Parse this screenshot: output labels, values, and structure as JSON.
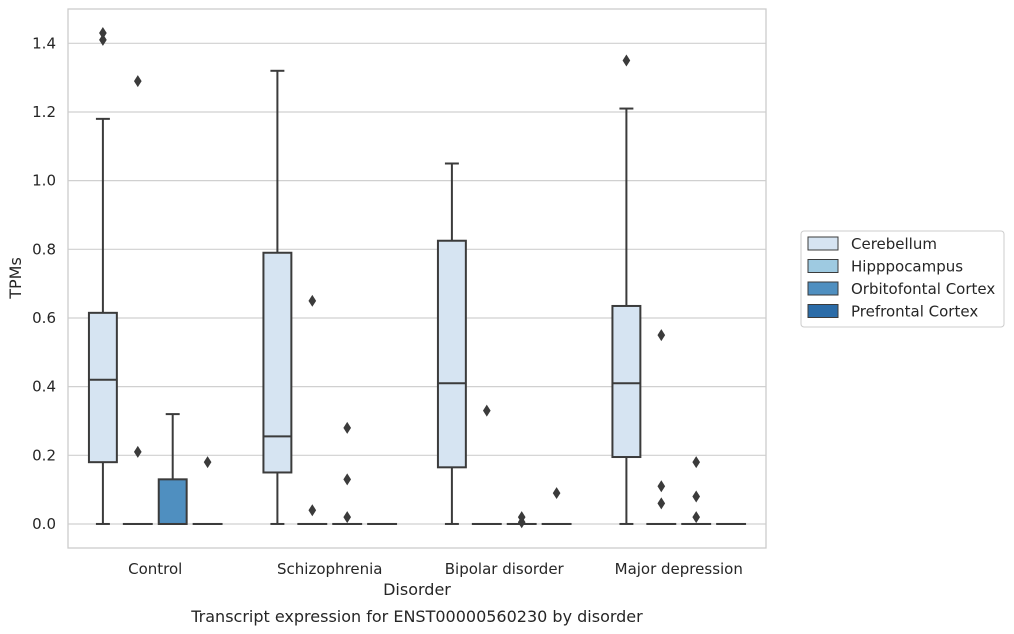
{
  "chart_data": {
    "type": "box",
    "title": "",
    "caption": "Transcript expression for ENST00000560230 by disorder",
    "xlabel": "Disorder",
    "ylabel": "TPMs",
    "ylim": [
      -0.07,
      1.5
    ],
    "yticks": [
      0.0,
      0.2,
      0.4,
      0.6,
      0.8,
      1.0,
      1.2,
      1.4
    ],
    "ytick_labels": [
      "0.0",
      "0.2",
      "0.4",
      "0.6",
      "0.8",
      "1.0",
      "1.2",
      "1.4"
    ],
    "grid": true,
    "legend_position": "right",
    "categories": [
      "Control",
      "Schizophrenia",
      "Bipolar disorder",
      "Major depression"
    ],
    "series": [
      {
        "name": "Cerebellum",
        "color": "#d6e4f2",
        "boxes": [
          {
            "category": "Control",
            "whislo": 0.0,
            "q1": 0.18,
            "med": 0.42,
            "q3": 0.615,
            "whishi": 1.18,
            "fliers": [
              1.41,
              1.43
            ]
          },
          {
            "category": "Schizophrenia",
            "whislo": 0.0,
            "q1": 0.15,
            "med": 0.255,
            "q3": 0.79,
            "whishi": 1.32,
            "fliers": []
          },
          {
            "category": "Bipolar disorder",
            "whislo": 0.0,
            "q1": 0.165,
            "med": 0.41,
            "q3": 0.825,
            "whishi": 1.05,
            "fliers": []
          },
          {
            "category": "Major depression",
            "whislo": 0.0,
            "q1": 0.195,
            "med": 0.41,
            "q3": 0.635,
            "whishi": 1.21,
            "fliers": [
              1.35
            ]
          }
        ]
      },
      {
        "name": "Hipppocampus",
        "color": "#9ecae1",
        "boxes": [
          {
            "category": "Control",
            "whislo": 0.0,
            "q1": 0.0,
            "med": 0.0,
            "q3": 0.0,
            "whishi": 0.0,
            "fliers": [
              0.21,
              1.29
            ]
          },
          {
            "category": "Schizophrenia",
            "whislo": 0.0,
            "q1": 0.0,
            "med": 0.0,
            "q3": 0.0,
            "whishi": 0.0,
            "fliers": [
              0.04,
              0.65
            ]
          },
          {
            "category": "Bipolar disorder",
            "whislo": 0.0,
            "q1": 0.0,
            "med": 0.0,
            "q3": 0.0,
            "whishi": 0.0,
            "fliers": [
              0.33
            ]
          },
          {
            "category": "Major depression",
            "whislo": 0.0,
            "q1": 0.0,
            "med": 0.0,
            "q3": 0.0,
            "whishi": 0.0,
            "fliers": [
              0.06,
              0.11,
              0.55
            ]
          }
        ]
      },
      {
        "name": "Orbitofontal Cortex",
        "color": "#4f8fc0",
        "boxes": [
          {
            "category": "Control",
            "whislo": 0.0,
            "q1": 0.0,
            "med": 0.0,
            "q3": 0.13,
            "whishi": 0.32,
            "fliers": []
          },
          {
            "category": "Schizophrenia",
            "whislo": 0.0,
            "q1": 0.0,
            "med": 0.0,
            "q3": 0.0,
            "whishi": 0.0,
            "fliers": [
              0.02,
              0.13,
              0.28
            ]
          },
          {
            "category": "Bipolar disorder",
            "whislo": 0.0,
            "q1": 0.0,
            "med": 0.0,
            "q3": 0.0,
            "whishi": 0.0,
            "fliers": [
              0.005,
              0.02
            ]
          },
          {
            "category": "Major depression",
            "whislo": 0.0,
            "q1": 0.0,
            "med": 0.0,
            "q3": 0.0,
            "whishi": 0.0,
            "fliers": [
              0.02,
              0.08,
              0.18
            ]
          }
        ]
      },
      {
        "name": "Prefrontal Cortex",
        "color": "#2b6ca8",
        "boxes": [
          {
            "category": "Control",
            "whislo": 0.0,
            "q1": 0.0,
            "med": 0.0,
            "q3": 0.0,
            "whishi": 0.0,
            "fliers": [
              0.18
            ]
          },
          {
            "category": "Schizophrenia",
            "whislo": 0.0,
            "q1": 0.0,
            "med": 0.0,
            "q3": 0.0,
            "whishi": 0.0,
            "fliers": []
          },
          {
            "category": "Bipolar disorder",
            "whislo": 0.0,
            "q1": 0.0,
            "med": 0.0,
            "q3": 0.0,
            "whishi": 0.0,
            "fliers": [
              0.09
            ]
          },
          {
            "category": "Major depression",
            "whislo": 0.0,
            "q1": 0.0,
            "med": 0.0,
            "q3": 0.0,
            "whishi": 0.0,
            "fliers": []
          }
        ]
      }
    ]
  }
}
